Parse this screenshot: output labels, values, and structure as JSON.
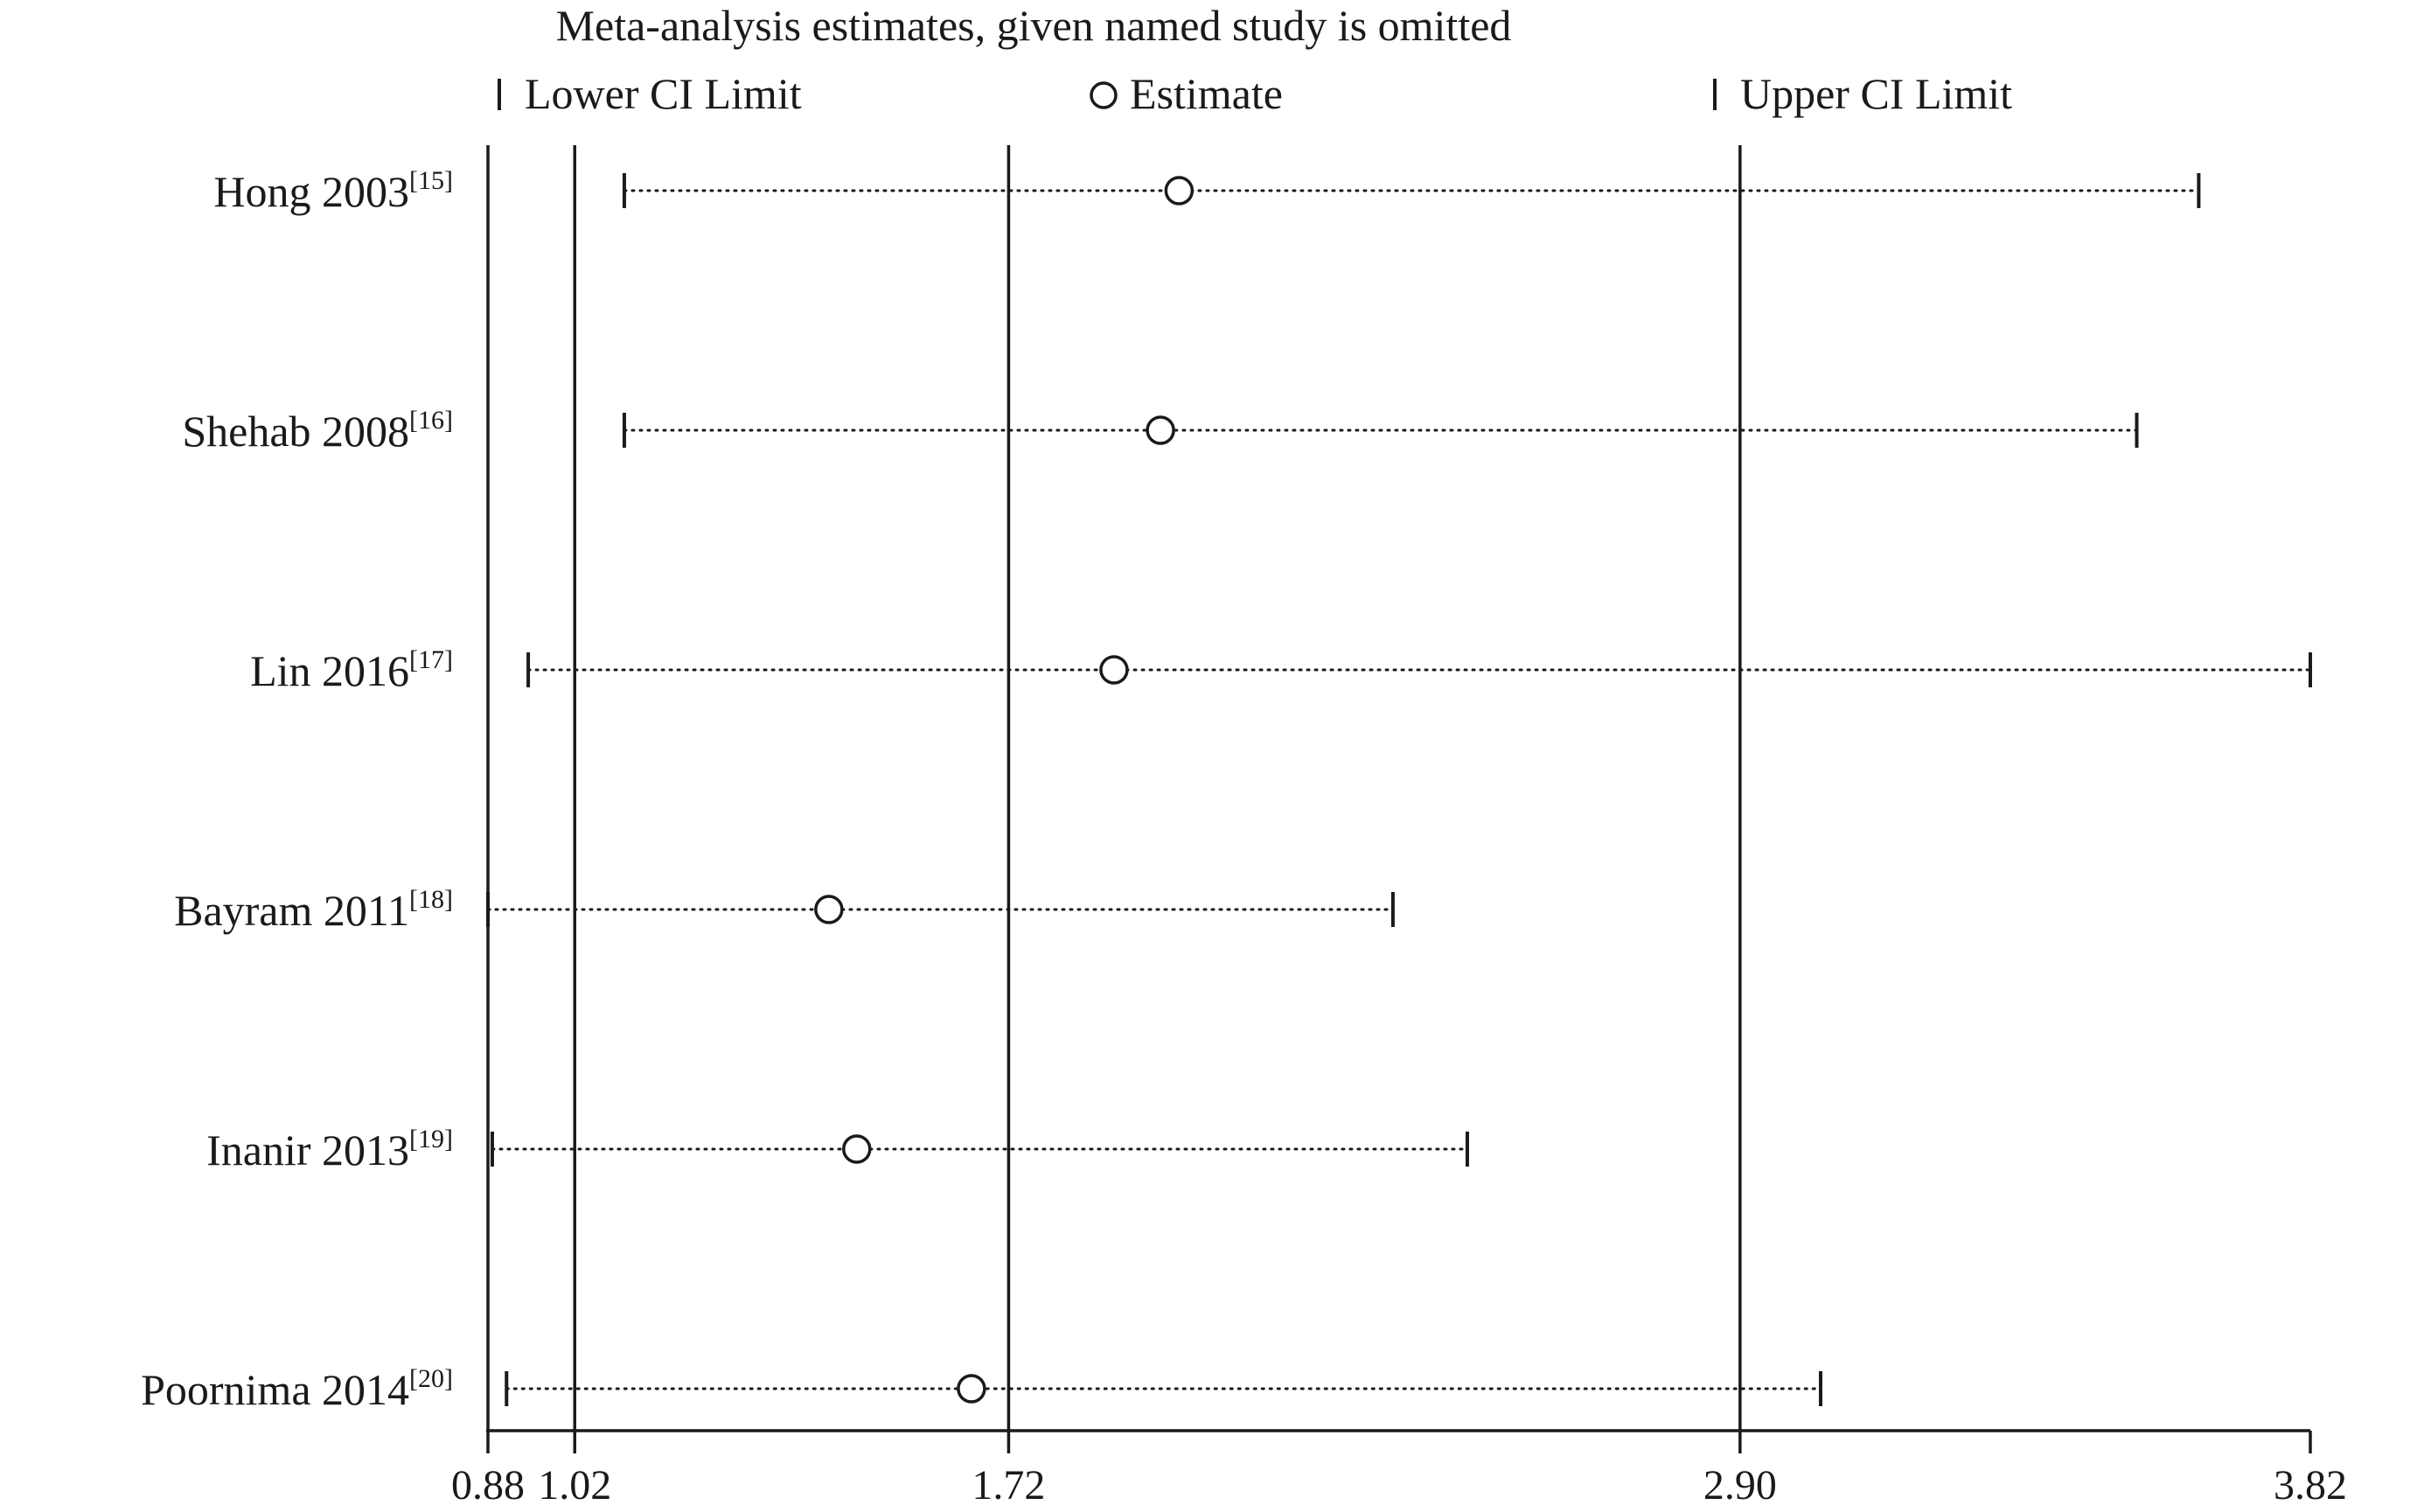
{
  "chart_data": {
    "type": "forest",
    "title": "Meta-analysis estimates, given named study is omitted",
    "legend": {
      "placement": "top",
      "lower_label": "Lower CI Limit",
      "estimate_label": "Estimate",
      "upper_label": "Upper CI Limit"
    },
    "xlim": [
      0.88,
      3.82
    ],
    "x_ticks": [
      {
        "value": 0.88,
        "label": "0.88"
      },
      {
        "value": 1.02,
        "label": "1.02"
      },
      {
        "value": 1.72,
        "label": "1.72"
      },
      {
        "value": 2.9,
        "label": "2.90"
      },
      {
        "value": 3.82,
        "label": "3.82"
      }
    ],
    "reference_lines": [
      {
        "value": 1.02,
        "role": "lower"
      },
      {
        "value": 1.72,
        "role": "estimate"
      },
      {
        "value": 2.9,
        "role": "upper"
      }
    ],
    "studies": [
      {
        "name": "Hong 2003",
        "ref": "[15]",
        "lower": 1.1,
        "estimate": 1.995,
        "upper": 3.64
      },
      {
        "name": "Shehab 2008",
        "ref": "[16]",
        "lower": 1.1,
        "estimate": 1.965,
        "upper": 3.54
      },
      {
        "name": "Lin 2016",
        "ref": "[17]",
        "lower": 0.945,
        "estimate": 1.89,
        "upper": 3.82
      },
      {
        "name": "Bayram 2011",
        "ref": "[18]",
        "lower": 0.88,
        "estimate": 1.43,
        "upper": 2.34
      },
      {
        "name": "Inanir 2013",
        "ref": "[19]",
        "lower": 0.887,
        "estimate": 1.475,
        "upper": 2.46
      },
      {
        "name": "Poornima 2014",
        "ref": "[20]",
        "lower": 0.91,
        "estimate": 1.66,
        "upper": 3.03
      }
    ]
  }
}
